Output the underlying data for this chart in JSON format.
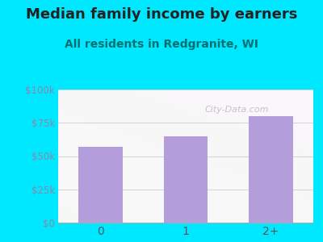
{
  "title": "Median family income by earners",
  "subtitle": "All residents in Redgranite, WI",
  "categories": [
    "0",
    "1",
    "2+"
  ],
  "values": [
    57000,
    65000,
    80000
  ],
  "bar_color": "#b39ddb",
  "background_outer": "#00e8ff",
  "title_color": "#222222",
  "subtitle_color": "#007070",
  "ytick_label_color": "#8888aa",
  "xtick_label_color": "#555555",
  "ytick_labels": [
    "$0",
    "$25k",
    "$50k",
    "$75k",
    "$100k"
  ],
  "ytick_values": [
    0,
    25000,
    50000,
    75000,
    100000
  ],
  "ylim": [
    0,
    100000
  ],
  "watermark": "City-Data.com",
  "title_fontsize": 13,
  "subtitle_fontsize": 10,
  "grid_color": "#cccccc"
}
